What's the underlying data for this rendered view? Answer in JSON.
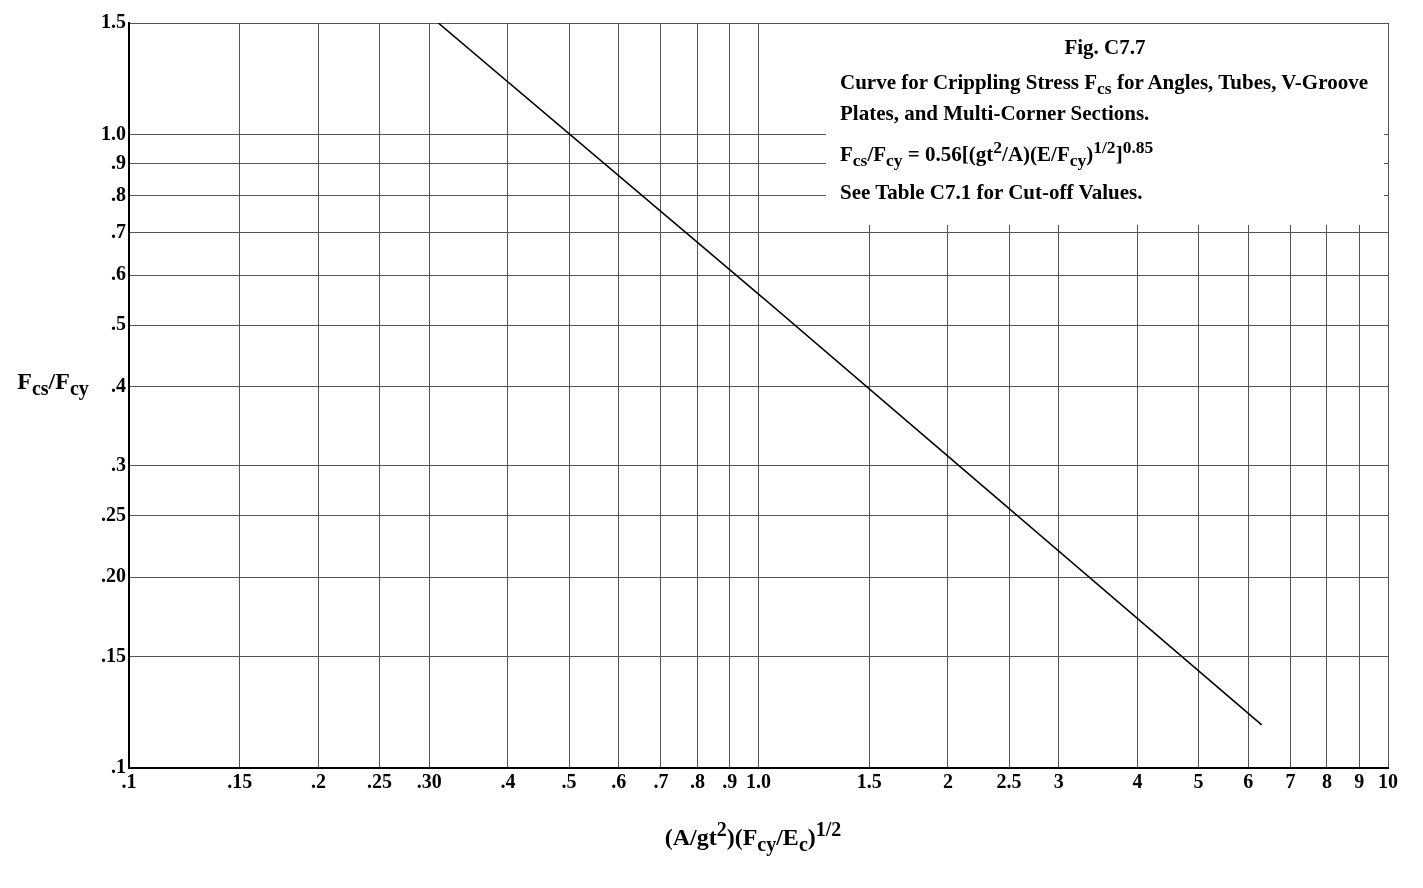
{
  "chart_data": {
    "type": "line",
    "xlabel": "(A/gt$^{2}$)(F$_{cy}$/E$_{c}$)$^{1/2}$",
    "ylabel": "F$_{cs}$/F$_{cy}$",
    "annotations": [
      "Fig. C7.7",
      "Curve for Crippling Stress F$_{cs}$ for Angles, Tubes, V-Groove Plates, and Multi-Corner Sections.",
      "F$_{cs}$/F$_{cy}$ = 0.56[(gt$^{2}$/A)(E/F$_{cy}$)$^{1/2}$]$^{0.85}$",
      "See Table C7.1 for Cut-off Values."
    ],
    "log": "xy",
    "grid": true,
    "legend": false,
    "marker": "none",
    "line_style": "solid",
    "xlim": [
      0.1,
      10
    ],
    "ylim": [
      0.1,
      1.5
    ],
    "xticks": [
      {
        "value": 0.1,
        "label": ".1"
      },
      {
        "value": 0.15,
        "label": ".15"
      },
      {
        "value": 0.2,
        "label": ".2"
      },
      {
        "value": 0.25,
        "label": ".25"
      },
      {
        "value": 0.3,
        "label": ".30"
      },
      {
        "value": 0.4,
        "label": ".4"
      },
      {
        "value": 0.5,
        "label": ".5"
      },
      {
        "value": 0.6,
        "label": ".6"
      },
      {
        "value": 0.7,
        "label": ".7"
      },
      {
        "value": 0.8,
        "label": ".8"
      },
      {
        "value": 0.9,
        "label": ".9"
      },
      {
        "value": 1,
        "label": "1.0"
      },
      1.5,
      2,
      2.5,
      3,
      4,
      5,
      6,
      7,
      8,
      9,
      10
    ],
    "yticks": [
      {
        "value": 0.1,
        "label": ".1"
      },
      {
        "value": 0.15,
        "label": ".15"
      },
      {
        "value": 0.2,
        "label": ".20"
      },
      {
        "value": 0.25,
        "label": ".25"
      },
      {
        "value": 0.3,
        "label": ".3"
      },
      {
        "value": 0.4,
        "label": ".4"
      },
      {
        "value": 0.5,
        "label": ".5"
      },
      {
        "value": 0.6,
        "label": ".6"
      },
      {
        "value": 0.7,
        "label": ".7"
      },
      {
        "value": 0.8,
        "label": ".8"
      },
      {
        "value": 0.9,
        "label": ".9"
      },
      {
        "value": 1,
        "label": "1.0"
      },
      1.5
    ],
    "series": [
      {
        "color": "#000000",
        "x": [
          0.31,
          1.0,
          6.3
        ],
        "values": [
          1.5,
          0.56,
          0.117
        ]
      }
    ]
  }
}
